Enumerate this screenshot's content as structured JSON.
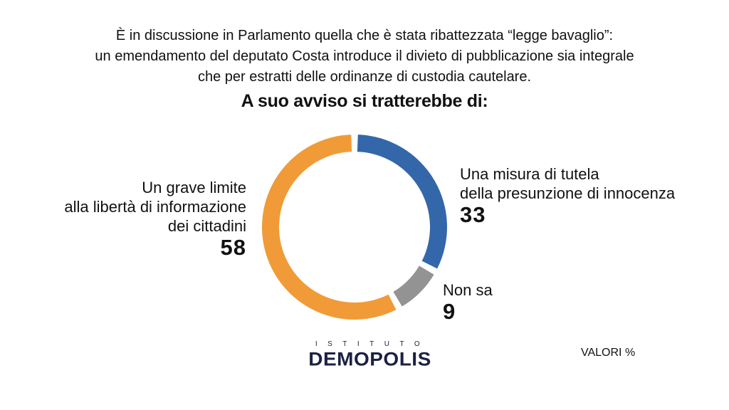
{
  "header": {
    "intro_lines": [
      "È in discussione in Parlamento quella che è stata ribattezzata “legge bavaglio”:",
      "un emendamento del deputato Costa introduce il divieto di pubblicazione sia integrale",
      "che per estratti delle ordinanze di custodia cautelare."
    ],
    "question": "A suo avviso si tratterebbe di:"
  },
  "chart_data": {
    "type": "pie",
    "style": "donut",
    "slices": [
      {
        "label_lines": [
          "Una misura di tutela",
          "della presunzione di innocenza"
        ],
        "value": 33,
        "display_value": "33",
        "color": "#3367aa"
      },
      {
        "label_lines": [
          "Non sa"
        ],
        "value": 9,
        "display_value": "9",
        "color": "#939393"
      },
      {
        "label_lines": [
          "Un grave limite",
          "alla libertà di informazione",
          "dei cittadini"
        ],
        "value": 58,
        "display_value": "58",
        "color": "#f09b37"
      }
    ]
  },
  "branding": {
    "logo_top": "ISTITUTO",
    "logo_main": "DEMOPOLIS",
    "logo_color": "#1c2044"
  },
  "footer": {
    "units_note": "VALORI %"
  }
}
